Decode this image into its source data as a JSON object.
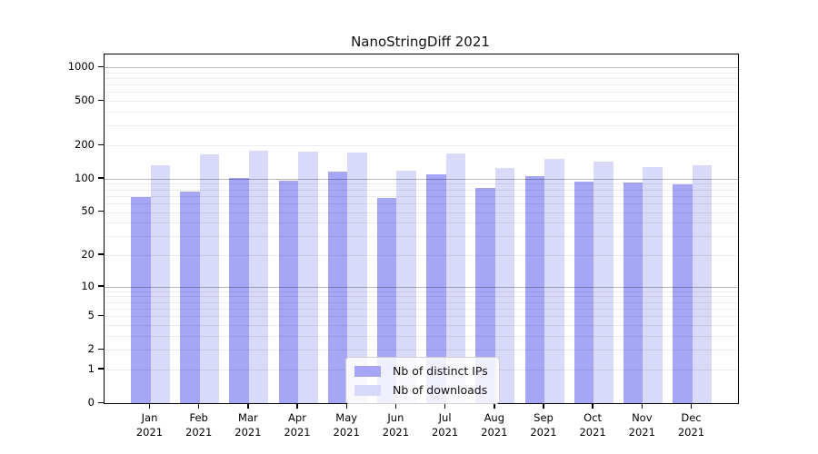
{
  "title": "NanoStringDiff 2021",
  "legend": {
    "items": [
      {
        "label": "Nb of distinct IPs",
        "color": "#a6a6f7"
      },
      {
        "label": "Nb of downloads",
        "color": "#d9d9f9"
      }
    ]
  },
  "chart_data": {
    "type": "bar",
    "scale": "log1p",
    "title": "NanoStringDiff 2021",
    "categories": [
      "Jan 2021",
      "Feb 2021",
      "Mar 2021",
      "Apr 2021",
      "May 2021",
      "Jun 2021",
      "Jul 2021",
      "Aug 2021",
      "Sep 2021",
      "Oct 2021",
      "Nov 2021",
      "Dec 2021"
    ],
    "series": [
      {
        "name": "Nb of distinct IPs",
        "color": "#a6a6f7",
        "values": [
          69,
          76,
          101,
          96,
          116,
          67,
          110,
          82,
          105,
          95,
          93,
          89
        ]
      },
      {
        "name": "Nb of downloads",
        "color": "#d9d9f9",
        "values": [
          133,
          165,
          180,
          176,
          172,
          118,
          168,
          124,
          150,
          144,
          128,
          133
        ]
      }
    ],
    "yticks": [
      0,
      1,
      2,
      5,
      10,
      20,
      50,
      100,
      200,
      500,
      1000
    ],
    "ylim": [
      0,
      1300
    ],
    "grid": true,
    "grid_major_at": [
      10,
      100,
      1000
    ],
    "legend_position": "lower-center",
    "xlabel": "",
    "ylabel": ""
  }
}
